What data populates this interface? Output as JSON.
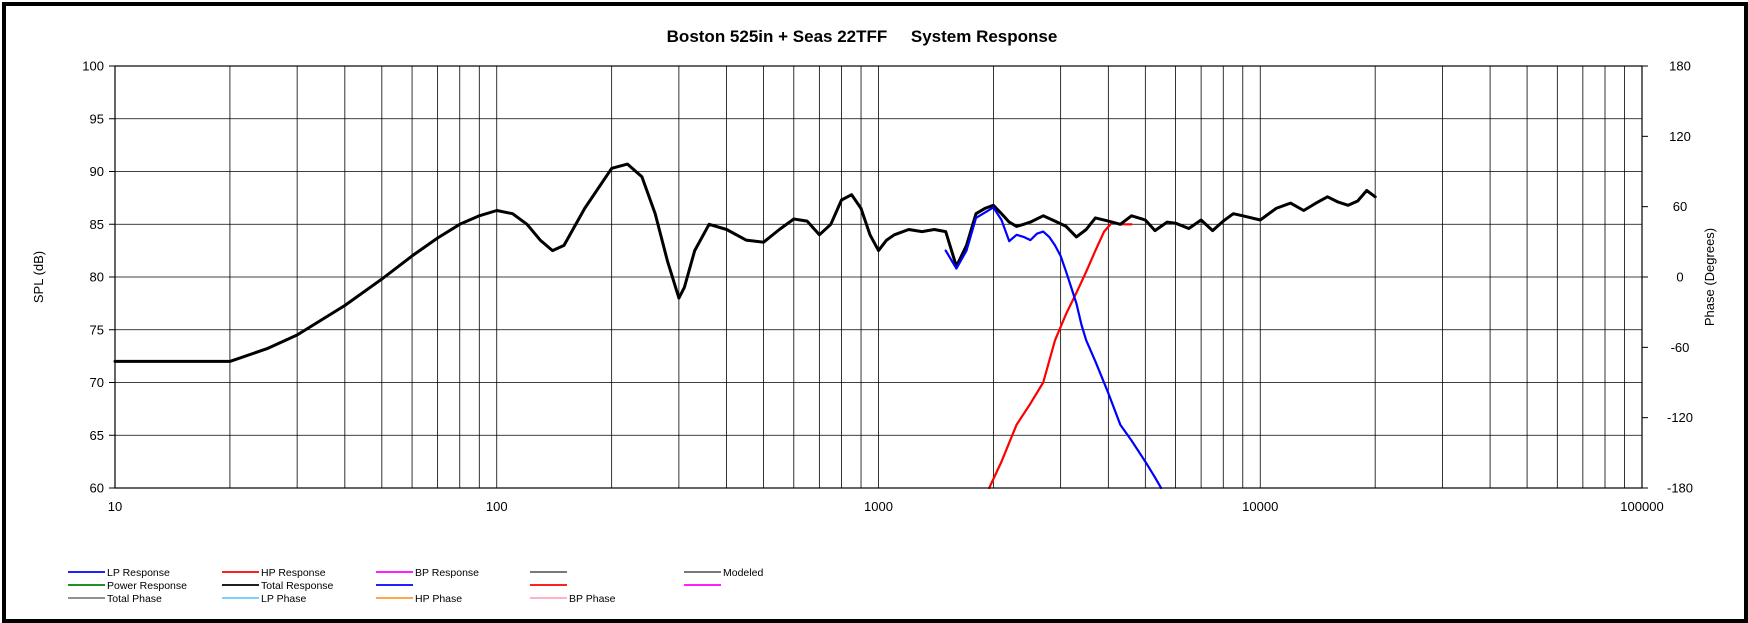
{
  "chart_data": {
    "type": "line",
    "title": "Boston 525in + Seas 22TFF     System Response",
    "xlabel": "",
    "ylabel": "SPL (dB)",
    "y2label": "Phase (Degrees)",
    "xscale": "log",
    "xlim": [
      10,
      100000
    ],
    "ylim": [
      60,
      100
    ],
    "y2lim": [
      -180,
      180
    ],
    "grid": true,
    "legend_position": "bottom-left",
    "x_ticks": [
      10,
      100,
      1000,
      10000,
      100000
    ],
    "x_tick_labels": [
      "10",
      "100",
      "1000",
      "10000",
      "100000"
    ],
    "y_ticks": [
      60,
      65,
      70,
      75,
      80,
      85,
      90,
      95,
      100
    ],
    "y_tick_labels": [
      "60",
      "65",
      "70",
      "75",
      "80",
      "85",
      "90",
      "95",
      "100"
    ],
    "y2_ticks": [
      -180,
      -120,
      -60,
      0,
      60,
      120,
      180
    ],
    "y2_tick_labels": [
      "-180",
      "-120",
      "-60",
      "0",
      "60",
      "120",
      "180"
    ],
    "series": [
      {
        "name": "Total Response",
        "color": "#000000",
        "x": [
          10,
          20,
          25,
          30,
          40,
          50,
          60,
          70,
          80,
          90,
          100,
          110,
          120,
          130,
          140,
          150,
          170,
          200,
          220,
          240,
          260,
          280,
          300,
          310,
          330,
          360,
          400,
          450,
          500,
          550,
          600,
          650,
          700,
          750,
          800,
          850,
          900,
          950,
          1000,
          1050,
          1100,
          1200,
          1300,
          1400,
          1500,
          1600,
          1700,
          1800,
          1900,
          2000,
          2100,
          2200,
          2300,
          2400,
          2500,
          2700,
          2900,
          3100,
          3300,
          3500,
          3700,
          4000,
          4300,
          4600,
          5000,
          5300,
          5700,
          6000,
          6500,
          7000,
          7500,
          8000,
          8500,
          9000,
          10000,
          11000,
          12000,
          13000,
          14000,
          15000,
          16000,
          17000,
          18000,
          19000,
          20000
        ],
        "y": [
          72,
          72,
          73.2,
          74.5,
          77.3,
          79.8,
          82,
          83.7,
          85,
          85.8,
          86.3,
          86,
          85,
          83.5,
          82.5,
          83,
          86.5,
          90.3,
          90.7,
          89.5,
          86,
          81.5,
          78,
          79,
          82.5,
          85,
          84.5,
          83.5,
          83.3,
          84.5,
          85.5,
          85.3,
          84,
          85,
          87.3,
          87.8,
          86.5,
          84,
          82.5,
          83.5,
          84,
          84.5,
          84.3,
          84.5,
          84.3,
          81,
          83,
          86,
          86.5,
          86.8,
          86,
          85.2,
          84.8,
          85,
          85.2,
          85.8,
          85.3,
          84.8,
          83.8,
          84.5,
          85.6,
          85.3,
          85,
          85.8,
          85.4,
          84.4,
          85.2,
          85.1,
          84.6,
          85.4,
          84.4,
          85.3,
          86,
          85.8,
          85.4,
          86.5,
          87,
          86.3,
          87,
          87.6,
          87.1,
          86.8,
          87.2,
          88.2,
          87.6
        ],
        "values_note": ""
      },
      {
        "name": "LP Response",
        "color": "#0000ff",
        "x": [
          1500,
          1600,
          1700,
          1800,
          1900,
          2000,
          2100,
          2200,
          2300,
          2400,
          2500,
          2600,
          2700,
          2800,
          2900,
          3000,
          3100,
          3200,
          3300,
          3400,
          3500,
          3700,
          4000,
          4300,
          4600,
          5000,
          5300,
          5500
        ],
        "y": [
          82.5,
          80.8,
          82.5,
          85.6,
          86.1,
          86.6,
          85.4,
          83.4,
          84,
          83.8,
          83.5,
          84.1,
          84.3,
          83.8,
          83,
          82,
          80.5,
          79,
          77.5,
          75.5,
          74,
          72,
          69,
          66,
          64.5,
          62.5,
          61,
          60
        ]
      },
      {
        "name": "HP Response",
        "color": "#ff0000",
        "x": [
          1950,
          2100,
          2300,
          2500,
          2700,
          2900,
          3100,
          3300,
          3500,
          3700,
          3900,
          4100,
          4300,
          4600
        ],
        "y": [
          60,
          62.5,
          66,
          68,
          70,
          74,
          76.5,
          78.5,
          80.5,
          82.5,
          84.3,
          85.2,
          85,
          85
        ]
      }
    ],
    "legend": {
      "rows": [
        [
          {
            "label": "LP Response",
            "color": "#0000ff"
          },
          {
            "label": "HP Response",
            "color": "#ff0000"
          },
          {
            "label": "BP Response",
            "color": "#ff00ff"
          },
          {
            "label": "",
            "color": "#666666"
          },
          {
            "label": "Modeled",
            "color": "#666666"
          }
        ],
        [
          {
            "label": "Power Response",
            "color": "#008000"
          },
          {
            "label": "Total Response",
            "color": "#000000"
          },
          {
            "label": "",
            "color": "#0000ff"
          },
          {
            "label": "",
            "color": "#ff0000"
          },
          {
            "label": "",
            "color": "#ff00ff"
          }
        ],
        [
          {
            "label": "Total Phase",
            "color": "#808080"
          },
          {
            "label": "LP Phase",
            "color": "#66ccff"
          },
          {
            "label": "HP Phase",
            "color": "#ff9933"
          },
          {
            "label": "BP Phase",
            "color": "#ffaabb"
          }
        ]
      ]
    }
  }
}
